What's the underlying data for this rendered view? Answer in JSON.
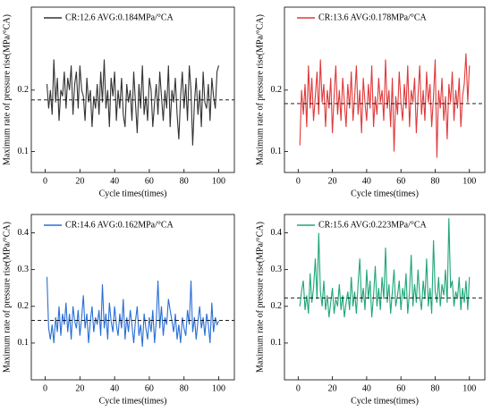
{
  "chart_data": [
    {
      "type": "line",
      "ylabel": "Maximum rate of pressure rise(MPa/°CA)",
      "xlabel": "Cycle times(times)",
      "xlim": [
        -8,
        109
      ],
      "xticks": [
        0,
        20,
        40,
        60,
        80,
        100
      ],
      "ylim": [
        0.066,
        0.335
      ],
      "yticks": [
        0.1,
        0.2
      ],
      "avg": 0.184,
      "x": [
        1,
        2,
        3,
        4,
        5,
        6,
        7,
        8,
        9,
        10,
        11,
        12,
        13,
        14,
        15,
        16,
        17,
        18,
        19,
        20,
        21,
        22,
        23,
        24,
        25,
        26,
        27,
        28,
        29,
        30,
        31,
        32,
        33,
        34,
        35,
        36,
        37,
        38,
        39,
        40,
        41,
        42,
        43,
        44,
        45,
        46,
        47,
        48,
        49,
        50,
        51,
        52,
        53,
        54,
        55,
        56,
        57,
        58,
        59,
        60,
        61,
        62,
        63,
        64,
        65,
        66,
        67,
        68,
        69,
        70,
        71,
        72,
        73,
        74,
        75,
        76,
        77,
        78,
        79,
        80,
        81,
        82,
        83,
        84,
        85,
        86,
        87,
        88,
        89,
        90,
        91,
        92,
        93,
        94,
        95,
        96,
        97,
        98,
        99,
        100
      ],
      "series": [
        {
          "name": "CR:12.6   AVG:0.184MPa/°CA",
          "color": "#333333",
          "values": [
            0.21,
            0.17,
            0.2,
            0.16,
            0.25,
            0.18,
            0.22,
            0.15,
            0.2,
            0.19,
            0.23,
            0.17,
            0.22,
            0.2,
            0.24,
            0.16,
            0.21,
            0.23,
            0.17,
            0.24,
            0.2,
            0.19,
            0.15,
            0.22,
            0.18,
            0.2,
            0.14,
            0.19,
            0.17,
            0.21,
            0.16,
            0.23,
            0.18,
            0.25,
            0.17,
            0.2,
            0.14,
            0.22,
            0.19,
            0.23,
            0.15,
            0.2,
            0.17,
            0.22,
            0.16,
            0.14,
            0.21,
            0.18,
            0.2,
            0.15,
            0.23,
            0.18,
            0.13,
            0.21,
            0.17,
            0.24,
            0.16,
            0.19,
            0.15,
            0.22,
            0.2,
            0.14,
            0.18,
            0.21,
            0.16,
            0.23,
            0.19,
            0.15,
            0.2,
            0.17,
            0.24,
            0.14,
            0.2,
            0.18,
            0.22,
            0.16,
            0.12,
            0.19,
            0.23,
            0.17,
            0.21,
            0.15,
            0.24,
            0.2,
            0.11,
            0.18,
            0.22,
            0.16,
            0.2,
            0.14,
            0.23,
            0.18,
            0.17,
            0.21,
            0.15,
            0.22,
            0.19,
            0.17,
            0.23,
            0.24
          ]
        }
      ]
    },
    {
      "type": "line",
      "ylabel": "Maximum rate of pressure rise(MPa/°CA)",
      "xlabel": "Cycle times(times)",
      "xlim": [
        -8,
        109
      ],
      "xticks": [
        0,
        20,
        40,
        60,
        80,
        100
      ],
      "ylim": [
        0.066,
        0.335
      ],
      "yticks": [
        0.1,
        0.2
      ],
      "avg": 0.178,
      "x": [
        1,
        2,
        3,
        4,
        5,
        6,
        7,
        8,
        9,
        10,
        11,
        12,
        13,
        14,
        15,
        16,
        17,
        18,
        19,
        20,
        21,
        22,
        23,
        24,
        25,
        26,
        27,
        28,
        29,
        30,
        31,
        32,
        33,
        34,
        35,
        36,
        37,
        38,
        39,
        40,
        41,
        42,
        43,
        44,
        45,
        46,
        47,
        48,
        49,
        50,
        51,
        52,
        53,
        54,
        55,
        56,
        57,
        58,
        59,
        60,
        61,
        62,
        63,
        64,
        65,
        66,
        67,
        68,
        69,
        70,
        71,
        72,
        73,
        74,
        75,
        76,
        77,
        78,
        79,
        80,
        81,
        82,
        83,
        84,
        85,
        86,
        87,
        88,
        89,
        90,
        91,
        92,
        93,
        94,
        95,
        96,
        97,
        98,
        99,
        100
      ],
      "series": [
        {
          "name": "CR:13.6   AVG:0.178MPa/°CA",
          "color": "#e0393b",
          "values": [
            0.11,
            0.2,
            0.16,
            0.21,
            0.14,
            0.24,
            0.17,
            0.22,
            0.15,
            0.19,
            0.23,
            0.16,
            0.25,
            0.18,
            0.21,
            0.14,
            0.2,
            0.17,
            0.22,
            0.13,
            0.19,
            0.24,
            0.16,
            0.2,
            0.15,
            0.22,
            0.18,
            0.14,
            0.21,
            0.17,
            0.23,
            0.15,
            0.19,
            0.24,
            0.16,
            0.2,
            0.13,
            0.22,
            0.18,
            0.15,
            0.21,
            0.17,
            0.24,
            0.14,
            0.19,
            0.16,
            0.22,
            0.18,
            0.2,
            0.15,
            0.25,
            0.17,
            0.2,
            0.14,
            0.22,
            0.1,
            0.19,
            0.16,
            0.23,
            0.18,
            0.15,
            0.21,
            0.17,
            0.24,
            0.14,
            0.2,
            0.18,
            0.22,
            0.13,
            0.19,
            0.24,
            0.16,
            0.2,
            0.15,
            0.23,
            0.18,
            0.21,
            0.14,
            0.19,
            0.25,
            0.09,
            0.2,
            0.17,
            0.22,
            0.15,
            0.19,
            0.12,
            0.21,
            0.18,
            0.23,
            0.15,
            0.2,
            0.17,
            0.22,
            0.14,
            0.19,
            0.21,
            0.26,
            0.18,
            0.24
          ]
        }
      ]
    },
    {
      "type": "line",
      "ylabel": "Maximum rate of pressure rise(MPa/°CA)",
      "xlabel": "Cycle times(times)",
      "xlim": [
        -8,
        109
      ],
      "xticks": [
        0,
        20,
        40,
        60,
        80,
        100
      ],
      "ylim": [
        0,
        0.45
      ],
      "yticks": [
        0.1,
        0.2,
        0.3,
        0.4
      ],
      "avg": 0.162,
      "x": [
        1,
        2,
        3,
        4,
        5,
        6,
        7,
        8,
        9,
        10,
        11,
        12,
        13,
        14,
        15,
        16,
        17,
        18,
        19,
        20,
        21,
        22,
        23,
        24,
        25,
        26,
        27,
        28,
        29,
        30,
        31,
        32,
        33,
        34,
        35,
        36,
        37,
        38,
        39,
        40,
        41,
        42,
        43,
        44,
        45,
        46,
        47,
        48,
        49,
        50,
        51,
        52,
        53,
        54,
        55,
        56,
        57,
        58,
        59,
        60,
        61,
        62,
        63,
        64,
        65,
        66,
        67,
        68,
        69,
        70,
        71,
        72,
        73,
        74,
        75,
        76,
        77,
        78,
        79,
        80,
        81,
        82,
        83,
        84,
        85,
        86,
        87,
        88,
        89,
        90,
        91,
        92,
        93,
        94,
        95,
        96,
        97,
        98,
        99,
        100
      ],
      "series": [
        {
          "name": "CR:14.6   AVG:0.162MPa/°CA",
          "color": "#2a6fd6",
          "values": [
            0.28,
            0.14,
            0.11,
            0.15,
            0.1,
            0.17,
            0.13,
            0.2,
            0.12,
            0.18,
            0.15,
            0.21,
            0.13,
            0.18,
            0.11,
            0.2,
            0.16,
            0.14,
            0.19,
            0.12,
            0.17,
            0.23,
            0.14,
            0.18,
            0.1,
            0.16,
            0.2,
            0.13,
            0.17,
            0.15,
            0.19,
            0.12,
            0.26,
            0.14,
            0.18,
            0.11,
            0.21,
            0.16,
            0.13,
            0.2,
            0.15,
            0.12,
            0.18,
            0.14,
            0.22,
            0.11,
            0.17,
            0.13,
            0.19,
            0.15,
            0.1,
            0.16,
            0.2,
            0.12,
            0.15,
            0.09,
            0.18,
            0.14,
            0.11,
            0.17,
            0.13,
            0.19,
            0.1,
            0.16,
            0.27,
            0.14,
            0.2,
            0.12,
            0.17,
            0.15,
            0.22,
            0.19,
            0.16,
            0.13,
            0.18,
            0.11,
            0.15,
            0.1,
            0.17,
            0.14,
            0.12,
            0.19,
            0.15,
            0.27,
            0.13,
            0.17,
            0.11,
            0.16,
            0.2,
            0.14,
            0.17,
            0.12,
            0.18,
            0.15,
            0.1,
            0.21,
            0.13,
            0.17,
            0.15,
            0.16
          ]
        }
      ]
    },
    {
      "type": "line",
      "ylabel": "Maximum rate of pressure rise(MPa/°CA)",
      "xlabel": "Cycle times(times)",
      "xlim": [
        -8,
        109
      ],
      "xticks": [
        0,
        20,
        40,
        60,
        80,
        100
      ],
      "ylim": [
        0,
        0.45
      ],
      "yticks": [
        0.1,
        0.2,
        0.3,
        0.4
      ],
      "avg": 0.223,
      "x": [
        1,
        2,
        3,
        4,
        5,
        6,
        7,
        8,
        9,
        10,
        11,
        12,
        13,
        14,
        15,
        16,
        17,
        18,
        19,
        20,
        21,
        22,
        23,
        24,
        25,
        26,
        27,
        28,
        29,
        30,
        31,
        32,
        33,
        34,
        35,
        36,
        37,
        38,
        39,
        40,
        41,
        42,
        43,
        44,
        45,
        46,
        47,
        48,
        49,
        50,
        51,
        52,
        53,
        54,
        55,
        56,
        57,
        58,
        59,
        60,
        61,
        62,
        63,
        64,
        65,
        66,
        67,
        68,
        69,
        70,
        71,
        72,
        73,
        74,
        75,
        76,
        77,
        78,
        79,
        80,
        81,
        82,
        83,
        84,
        85,
        86,
        87,
        88,
        89,
        90,
        91,
        92,
        93,
        94,
        95,
        96,
        97,
        98,
        99,
        100
      ],
      "series": [
        {
          "name": "CR:15.6   AVG:0.223MPa/°CA",
          "color": "#1fa67a",
          "values": [
            0.2,
            0.24,
            0.27,
            0.19,
            0.23,
            0.18,
            0.29,
            0.21,
            0.25,
            0.33,
            0.22,
            0.4,
            0.24,
            0.2,
            0.27,
            0.19,
            0.23,
            0.17,
            0.21,
            0.25,
            0.18,
            0.22,
            0.2,
            0.26,
            0.19,
            0.23,
            0.17,
            0.21,
            0.24,
            0.19,
            0.28,
            0.2,
            0.24,
            0.18,
            0.26,
            0.33,
            0.21,
            0.25,
            0.19,
            0.3,
            0.22,
            0.27,
            0.17,
            0.23,
            0.31,
            0.2,
            0.25,
            0.19,
            0.28,
            0.22,
            0.36,
            0.21,
            0.26,
            0.18,
            0.24,
            0.3,
            0.2,
            0.23,
            0.27,
            0.19,
            0.25,
            0.22,
            0.29,
            0.18,
            0.24,
            0.34,
            0.2,
            0.26,
            0.21,
            0.3,
            0.23,
            0.19,
            0.27,
            0.22,
            0.33,
            0.2,
            0.25,
            0.18,
            0.38,
            0.24,
            0.21,
            0.28,
            0.2,
            0.26,
            0.23,
            0.3,
            0.21,
            0.44,
            0.25,
            0.27,
            0.2,
            0.24,
            0.22,
            0.28,
            0.19,
            0.25,
            0.21,
            0.27,
            0.19,
            0.28
          ]
        }
      ]
    }
  ]
}
